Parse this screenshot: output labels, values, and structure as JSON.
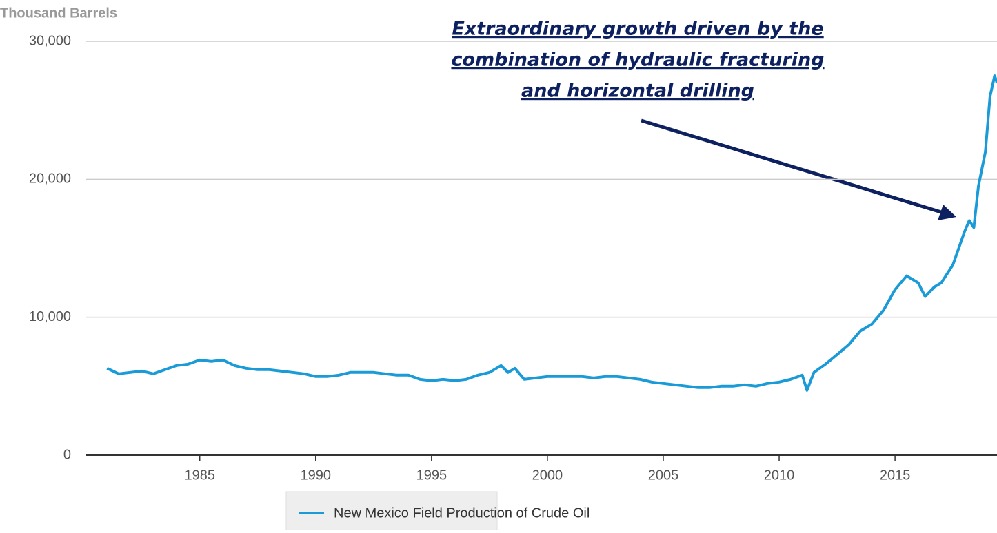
{
  "chart_data": {
    "type": "line",
    "y_label": "Thousand Barrels",
    "annotation": [
      "Extraordinary growth driven by the",
      "combination of hydraulic fracturing",
      "and horizontal drilling"
    ],
    "x": [
      1981.0,
      1981.5,
      1982.0,
      1982.5,
      1983.0,
      1983.5,
      1984.0,
      1984.5,
      1985.0,
      1985.5,
      1986.0,
      1986.5,
      1987.0,
      1987.5,
      1988.0,
      1988.5,
      1989.0,
      1989.5,
      1990.0,
      1990.5,
      1991.0,
      1991.5,
      1992.0,
      1992.5,
      1993.0,
      1993.5,
      1994.0,
      1994.5,
      1995.0,
      1995.5,
      1996.0,
      1996.5,
      1997.0,
      1997.5,
      1998.0,
      1998.3,
      1998.6,
      1999.0,
      1999.5,
      2000.0,
      2000.5,
      2001.0,
      2001.5,
      2002.0,
      2002.5,
      2003.0,
      2003.5,
      2004.0,
      2004.5,
      2005.0,
      2005.5,
      2006.0,
      2006.5,
      2007.0,
      2007.5,
      2008.0,
      2008.5,
      2009.0,
      2009.5,
      2010.0,
      2010.5,
      2011.0,
      2011.2,
      2011.5,
      2012.0,
      2012.5,
      2013.0,
      2013.5,
      2014.0,
      2014.5,
      2015.0,
      2015.5,
      2016.0,
      2016.3,
      2016.7,
      2017.0,
      2017.5,
      2018.0,
      2018.2,
      2018.4,
      2018.6,
      2018.9,
      2019.1,
      2019.3,
      2019.4
    ],
    "series": [
      {
        "name": "New Mexico Field Production of Crude Oil",
        "color": "#1a9bd7",
        "values": [
          6300,
          5900,
          6000,
          6100,
          5900,
          6200,
          6500,
          6600,
          6900,
          6800,
          6900,
          6500,
          6300,
          6200,
          6200,
          6100,
          6000,
          5900,
          5700,
          5700,
          5800,
          6000,
          6000,
          6000,
          5900,
          5800,
          5800,
          5500,
          5400,
          5500,
          5400,
          5500,
          5800,
          6000,
          6500,
          6000,
          6300,
          5500,
          5600,
          5700,
          5700,
          5700,
          5700,
          5600,
          5700,
          5700,
          5600,
          5500,
          5300,
          5200,
          5100,
          5000,
          4900,
          4900,
          5000,
          5000,
          5100,
          5000,
          5200,
          5300,
          5500,
          5800,
          4700,
          6000,
          6600,
          7300,
          8000,
          9000,
          9500,
          10500,
          12000,
          13000,
          12500,
          11500,
          12200,
          12500,
          13800,
          16200,
          17000,
          16500,
          19500,
          22000,
          26000,
          27500,
          27000
        ]
      }
    ],
    "xlim": [
      1980.1,
      2019.4
    ],
    "xticks": [
      1985,
      1990,
      1995,
      2000,
      2005,
      2010,
      2015
    ],
    "ylim": [
      0,
      30000
    ],
    "yticks": [
      0,
      {
        "value": 10000,
        "label": "10,000"
      },
      {
        "value": 20000,
        "label": "20,000"
      },
      {
        "value": 30000,
        "label": "30,000"
      }
    ],
    "grid": true
  }
}
